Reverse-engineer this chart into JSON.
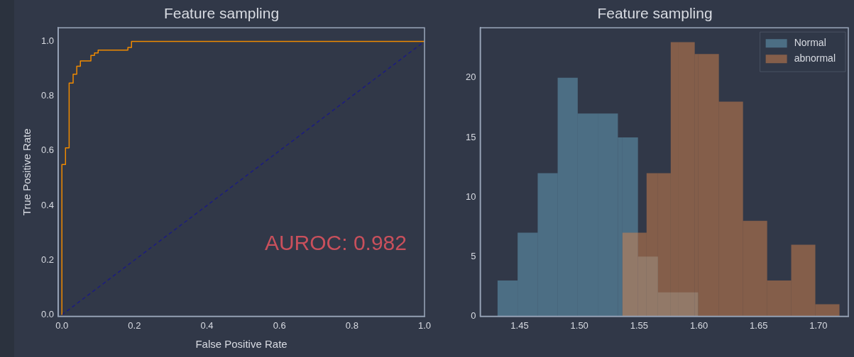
{
  "chart_data": [
    {
      "type": "line",
      "title": "Feature sampling",
      "xlabel": "False Positive Rate",
      "ylabel": "True Positive Rate",
      "annotations": [
        "AUROC: 0.982"
      ],
      "xlim": [
        -0.01,
        1.0
      ],
      "ylim": [
        -0.005,
        1.05
      ],
      "xticks": [
        {
          "value": 0,
          "label": "0.0"
        },
        {
          "value": 0.2,
          "label": "0.2"
        },
        {
          "value": 0.4,
          "label": "0.4"
        },
        {
          "value": 0.6,
          "label": "0.6"
        },
        {
          "value": 0.8,
          "label": "0.8"
        },
        {
          "value": 1,
          "label": "1.0"
        }
      ],
      "yticks": [
        {
          "value": 0,
          "label": "0.0"
        },
        {
          "value": 0.2,
          "label": "0.2"
        },
        {
          "value": 0.4,
          "label": "0.4"
        },
        {
          "value": 0.6,
          "label": "0.6"
        },
        {
          "value": 0.8,
          "label": "0.8"
        },
        {
          "value": 1,
          "label": "1.0"
        }
      ],
      "grid": false,
      "legend": false,
      "series": [
        {
          "color": "#f08a00",
          "x": [
            0,
            0,
            0.01,
            0.01,
            0.02,
            0.02,
            0.031,
            0.031,
            0.041,
            0.041,
            0.051,
            0.051,
            0.08,
            0.08,
            0.09,
            0.09,
            0.1,
            0.1,
            0.182,
            0.182,
            0.192,
            0.192,
            1.0
          ],
          "values": [
            0,
            0.55,
            0.55,
            0.611,
            0.611,
            0.848,
            0.848,
            0.88,
            0.88,
            0.909,
            0.909,
            0.929,
            0.929,
            0.949,
            0.949,
            0.958,
            0.958,
            0.968,
            0.968,
            0.978,
            0.978,
            1.0,
            1.0
          ]
        },
        {
          "color": "#1c1c80",
          "line_style": "dashed",
          "x": [
            0,
            1
          ],
          "values": [
            0,
            1
          ]
        }
      ]
    },
    {
      "type": "histogram",
      "title": "Feature sampling",
      "xlim": [
        1.417,
        1.725
      ],
      "ylim": [
        0,
        24.2
      ],
      "xticks": [
        {
          "value": 1.45,
          "label": "1.45"
        },
        {
          "value": 1.5,
          "label": "1.50"
        },
        {
          "value": 1.55,
          "label": "1.55"
        },
        {
          "value": 1.6,
          "label": "1.60"
        },
        {
          "value": 1.65,
          "label": "1.65"
        },
        {
          "value": 1.7,
          "label": "1.70"
        }
      ],
      "yticks": [
        0,
        5,
        10,
        15,
        20
      ],
      "grid": false,
      "legend": "top right",
      "bins": [
        1.4315,
        1.4483,
        1.4651,
        1.4818,
        1.4986,
        1.5154,
        1.5322,
        1.536,
        1.549,
        1.5562,
        1.5657,
        1.5764,
        1.5825,
        1.5965,
        1.5993,
        1.6167,
        1.6369,
        1.6571,
        1.6772,
        1.6974,
        1.7176
      ],
      "series": [
        {
          "name": "Normal",
          "color": "#67a4c0",
          "values": [
            3,
            7,
            12,
            20,
            17,
            17,
            15,
            15,
            5,
            5,
            2,
            2,
            2,
            2,
            0,
            0,
            0,
            0,
            0,
            0
          ]
        },
        {
          "name": "abnormal",
          "color": "#d7844c",
          "values": [
            0,
            0,
            0,
            0,
            0,
            0,
            0,
            7,
            7,
            12,
            12,
            23,
            23,
            22,
            22,
            18,
            8,
            3,
            6,
            1
          ]
        }
      ]
    }
  ]
}
